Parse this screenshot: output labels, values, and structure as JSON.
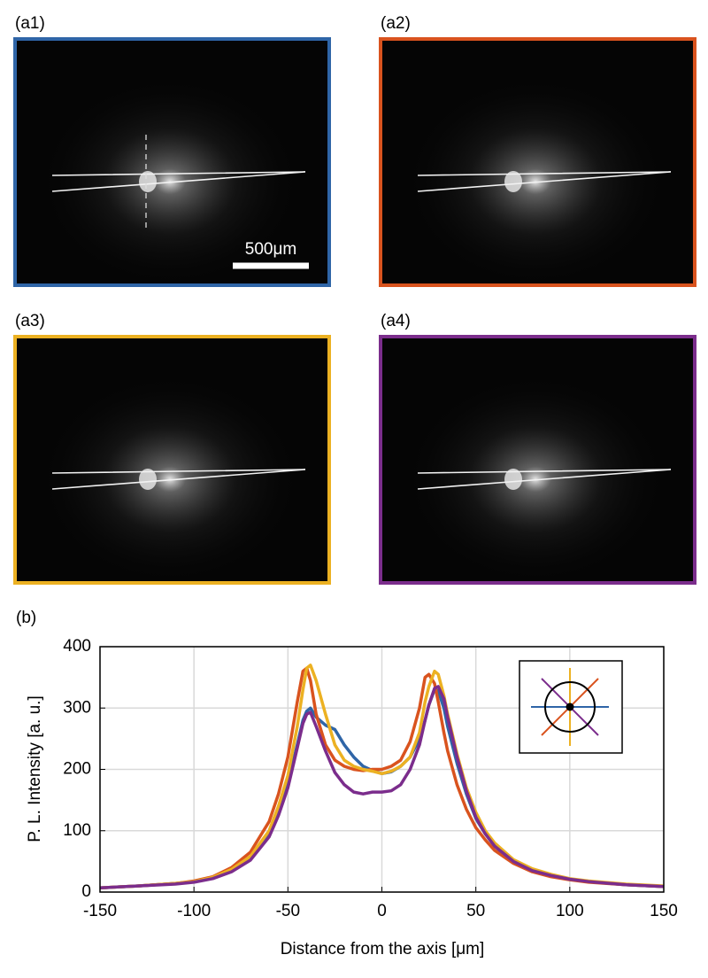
{
  "panels": [
    {
      "label": "(a1)",
      "color": "#2f65a7"
    },
    {
      "label": "(a2)",
      "color": "#d9531e"
    },
    {
      "label": "(a3)",
      "color": "#ecb122"
    },
    {
      "label": "(a4)",
      "color": "#7b2d8c"
    }
  ],
  "scale_bar": "500μm",
  "chart_label": "(b)",
  "chart_data": {
    "type": "line",
    "x_label": "Distance from the axis [μm]",
    "y_label": "P. L. Intensity [a. u.]",
    "x": [
      -150,
      -130,
      -110,
      -100,
      -90,
      -80,
      -70,
      -60,
      -55,
      -50,
      -45,
      -42,
      -40,
      -38,
      -35,
      -30,
      -25,
      -20,
      -15,
      -10,
      -5,
      0,
      5,
      10,
      15,
      20,
      23,
      25,
      28,
      30,
      33,
      35,
      40,
      45,
      50,
      55,
      60,
      70,
      80,
      90,
      100,
      110,
      130,
      150
    ],
    "series": [
      {
        "color": "#2f65a7",
        "values": [
          7,
          10,
          14,
          17,
          23,
          35,
          55,
          95,
          130,
          175,
          240,
          280,
          295,
          300,
          285,
          272,
          265,
          240,
          220,
          205,
          198,
          193,
          196,
          205,
          220,
          250,
          280,
          305,
          330,
          328,
          300,
          270,
          210,
          160,
          120,
          95,
          75,
          50,
          35,
          27,
          21,
          17,
          12,
          9
        ]
      },
      {
        "color": "#d9531e",
        "values": [
          7,
          10,
          14,
          18,
          25,
          40,
          65,
          115,
          160,
          220,
          310,
          360,
          365,
          345,
          290,
          240,
          215,
          205,
          200,
          198,
          200,
          200,
          205,
          215,
          245,
          300,
          350,
          355,
          340,
          310,
          260,
          230,
          175,
          135,
          105,
          85,
          68,
          47,
          33,
          25,
          20,
          16,
          12,
          9
        ]
      },
      {
        "color": "#ecb122",
        "values": [
          7,
          10,
          14,
          17,
          24,
          37,
          58,
          100,
          140,
          190,
          270,
          330,
          365,
          370,
          345,
          290,
          240,
          215,
          205,
          200,
          197,
          193,
          197,
          205,
          220,
          260,
          310,
          335,
          360,
          355,
          320,
          290,
          225,
          170,
          130,
          100,
          80,
          53,
          38,
          29,
          22,
          18,
          13,
          10
        ]
      },
      {
        "color": "#7b2d8c",
        "values": [
          7,
          10,
          13,
          16,
          22,
          33,
          52,
          90,
          125,
          170,
          235,
          275,
          290,
          293,
          270,
          230,
          195,
          175,
          163,
          160,
          163,
          163,
          165,
          175,
          200,
          240,
          280,
          305,
          332,
          335,
          315,
          285,
          220,
          165,
          122,
          95,
          75,
          50,
          35,
          27,
          21,
          17,
          12,
          9
        ]
      }
    ],
    "xlim": [
      -150,
      150
    ],
    "ylim": [
      0,
      400
    ],
    "xticks": [
      -150,
      -100,
      -50,
      0,
      50,
      100,
      150
    ],
    "yticks": [
      0,
      100,
      200,
      300,
      400
    ],
    "grid": true
  }
}
